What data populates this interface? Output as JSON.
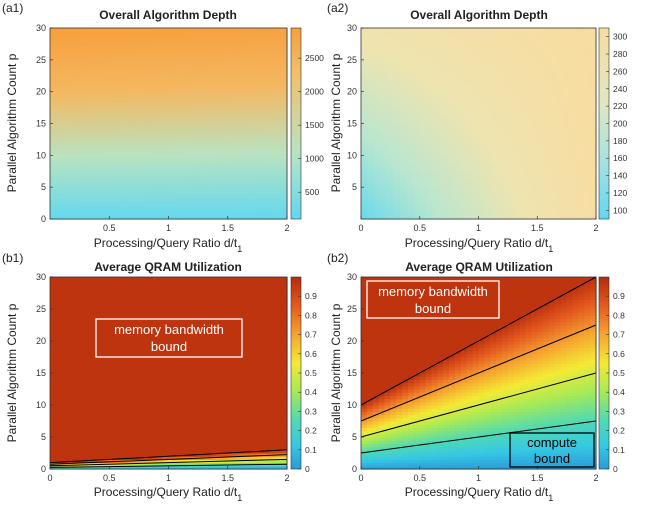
{
  "panels": [
    {
      "id": "a1",
      "label": "(a1)",
      "title": "Overall Algorithm Depth",
      "xlabel": "Processing/Query Ratio d/t",
      "xlabel_sub": "1",
      "ylabel": "Parallel Algorithm Count p",
      "colorbar_ticks": [
        "500",
        "1000",
        "1500",
        "2000",
        "2500"
      ]
    },
    {
      "id": "a2",
      "label": "(a2)",
      "title": "Overall Algorithm Depth",
      "xlabel": "Processing/Query Ratio d/t",
      "xlabel_sub": "1",
      "ylabel": "Parallel Algorithm Count p",
      "colorbar_ticks": [
        "100",
        "120",
        "140",
        "160",
        "180",
        "200",
        "220",
        "240",
        "260",
        "280",
        "300"
      ]
    },
    {
      "id": "b1",
      "label": "(b1)",
      "title": "Average QRAM Utilization",
      "xlabel": "Processing/Query Ratio d/t",
      "xlabel_sub": "1",
      "ylabel": "Parallel Algorithm Count p",
      "colorbar_ticks": [
        "0",
        "0.1",
        "0.2",
        "0.3",
        "0.4",
        "0.5",
        "0.6",
        "0.7",
        "0.8",
        "0.9"
      ],
      "annotations": [
        {
          "text_lines": [
            "memory bandwidth",
            "bound"
          ]
        }
      ]
    },
    {
      "id": "b2",
      "label": "(b2)",
      "title": "Average QRAM Utilization",
      "xlabel": "Processing/Query Ratio d/t",
      "xlabel_sub": "1",
      "ylabel": "Parallel Algorithm Count p",
      "colorbar_ticks": [
        "0",
        "0.1",
        "0.2",
        "0.3",
        "0.4",
        "0.5",
        "0.6",
        "0.7",
        "0.8",
        "0.9"
      ],
      "annotations": [
        {
          "text_lines": [
            "memory bandwidth",
            "bound"
          ]
        },
        {
          "text_lines": [
            "compute",
            "bound"
          ]
        }
      ]
    }
  ],
  "chart_data": [
    {
      "type": "heatmap",
      "id": "a1",
      "title": "Overall Algorithm Depth",
      "xlabel": "Processing/Query Ratio d/t1",
      "ylabel": "Parallel Algorithm Count p",
      "xlim": [
        0,
        2
      ],
      "ylim": [
        0,
        30
      ],
      "xticks": [
        0.5,
        1,
        1.5,
        2
      ],
      "yticks": [
        0,
        5,
        10,
        15,
        20,
        25,
        30
      ],
      "clim": [
        100,
        2950
      ],
      "colorbar_ticks": [
        500,
        1000,
        1500,
        2000,
        2500
      ],
      "colormap": [
        "#61d8f0",
        "#b9e3c0",
        "#f4b860",
        "#f79f3d"
      ],
      "z_at_corners": {
        "x0_y0": 120,
        "x2_y0": 110,
        "x0_y30": 2950,
        "x2_y30": 2800
      }
    },
    {
      "type": "heatmap",
      "id": "a2",
      "title": "Overall Algorithm Depth",
      "xlabel": "Processing/Query Ratio d/t1",
      "ylabel": "Parallel Algorithm Count p",
      "xlim": [
        0,
        2
      ],
      "ylim": [
        0,
        30
      ],
      "xticks": [
        0,
        0.5,
        1,
        1.5,
        2
      ],
      "yticks": [
        5,
        10,
        15,
        20,
        25,
        30
      ],
      "clim": [
        90,
        310
      ],
      "colorbar_ticks": [
        100,
        120,
        140,
        160,
        180,
        200,
        220,
        240,
        260,
        280,
        300
      ],
      "colormap": [
        "#61d8f0",
        "#b8e6d0",
        "#eee4b0",
        "#f8dca0"
      ],
      "z_at_corners": {
        "x0_y0": 95,
        "x2_y0": 300,
        "x0_y30": 250,
        "x2_y30": 310
      }
    },
    {
      "type": "heatmap",
      "id": "b1",
      "title": "Average QRAM Utilization",
      "xlabel": "Processing/Query Ratio d/t1",
      "ylabel": "Parallel Algorithm Count p",
      "xlim": [
        0,
        2
      ],
      "ylim": [
        0,
        30
      ],
      "xticks": [
        0,
        0.5,
        1,
        1.5,
        2
      ],
      "yticks": [
        0,
        5,
        10,
        15,
        20,
        25,
        30
      ],
      "clim": [
        0,
        1
      ],
      "colorbar_ticks": [
        0,
        0.1,
        0.2,
        0.3,
        0.4,
        0.5,
        0.6,
        0.7,
        0.8,
        0.9
      ],
      "saturation_line": {
        "p_at_x0": 1,
        "p_at_x2": 3
      },
      "contour_levels": [
        0.25,
        0.5,
        0.75,
        1.0
      ],
      "annotation": "memory bandwidth bound"
    },
    {
      "type": "heatmap",
      "id": "b2",
      "title": "Average QRAM Utilization",
      "xlabel": "Processing/Query Ratio d/t1",
      "ylabel": "Parallel Algorithm Count p",
      "xlim": [
        0,
        2
      ],
      "ylim": [
        0,
        30
      ],
      "xticks": [
        0,
        0.5,
        1,
        1.5,
        2
      ],
      "yticks": [
        0,
        5,
        10,
        15,
        20,
        25,
        30
      ],
      "clim": [
        0,
        1
      ],
      "colorbar_ticks": [
        0,
        0.1,
        0.2,
        0.3,
        0.4,
        0.5,
        0.6,
        0.7,
        0.8,
        0.9
      ],
      "saturation_line": {
        "p_at_x0": 10,
        "p_at_x2": 30
      },
      "contour_levels": [
        0.25,
        0.5,
        0.75,
        1.0
      ],
      "annotations": [
        "memory bandwidth bound",
        "compute bound"
      ]
    }
  ]
}
